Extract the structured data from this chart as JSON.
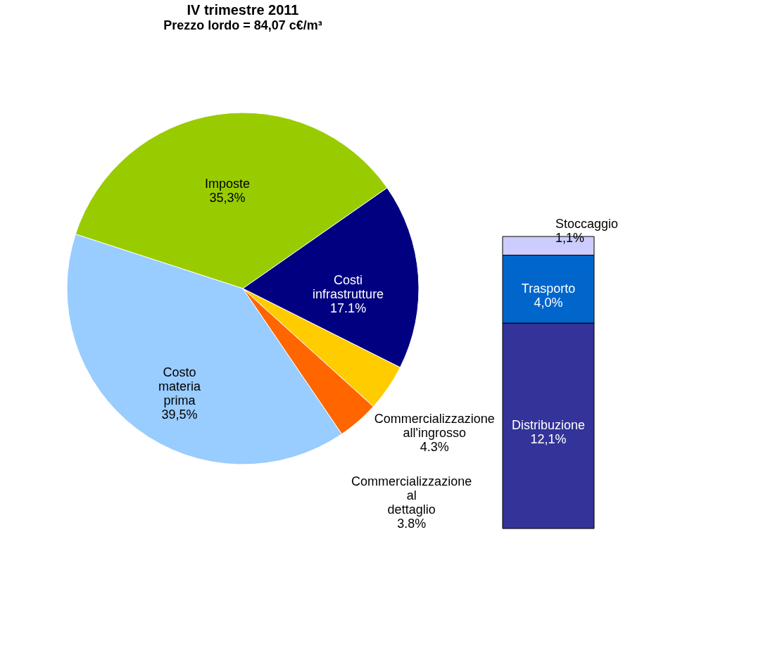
{
  "chart_data": [
    {
      "type": "pie",
      "title": "IV trimestre 2011",
      "subtitle": "Prezzo lordo = 84,07 c€/m³",
      "categories": [
        "Imposte",
        "Costi infrastrutture",
        "Commercializzazione all'ingrosso",
        "Commercializzazione al dettaglio",
        "Costo materia prima"
      ],
      "values": [
        35.3,
        17.1,
        4.3,
        3.8,
        39.5
      ],
      "colors": [
        "#99cc00",
        "#000080",
        "#ffcc00",
        "#ff6600",
        "#99ccff"
      ],
      "value_labels": [
        "35,3%",
        "17.1%",
        "4.3%",
        "3.8%",
        "39,5%"
      ],
      "legend": false
    },
    {
      "type": "bar",
      "stacked": true,
      "categories": [
        null
      ],
      "legend": false,
      "series": [
        {
          "name": "Distribuzione",
          "color": "#333399",
          "values": [
            12.1
          ],
          "value_labels": [
            "12,1%"
          ]
        },
        {
          "name": "Trasporto",
          "color": "#0066cc",
          "values": [
            4.0
          ],
          "value_labels": [
            "4,0%"
          ]
        },
        {
          "name": "Stoccaggio",
          "color": "#ccccff",
          "values": [
            1.1
          ],
          "value_labels": [
            "1,1%"
          ]
        }
      ]
    }
  ]
}
